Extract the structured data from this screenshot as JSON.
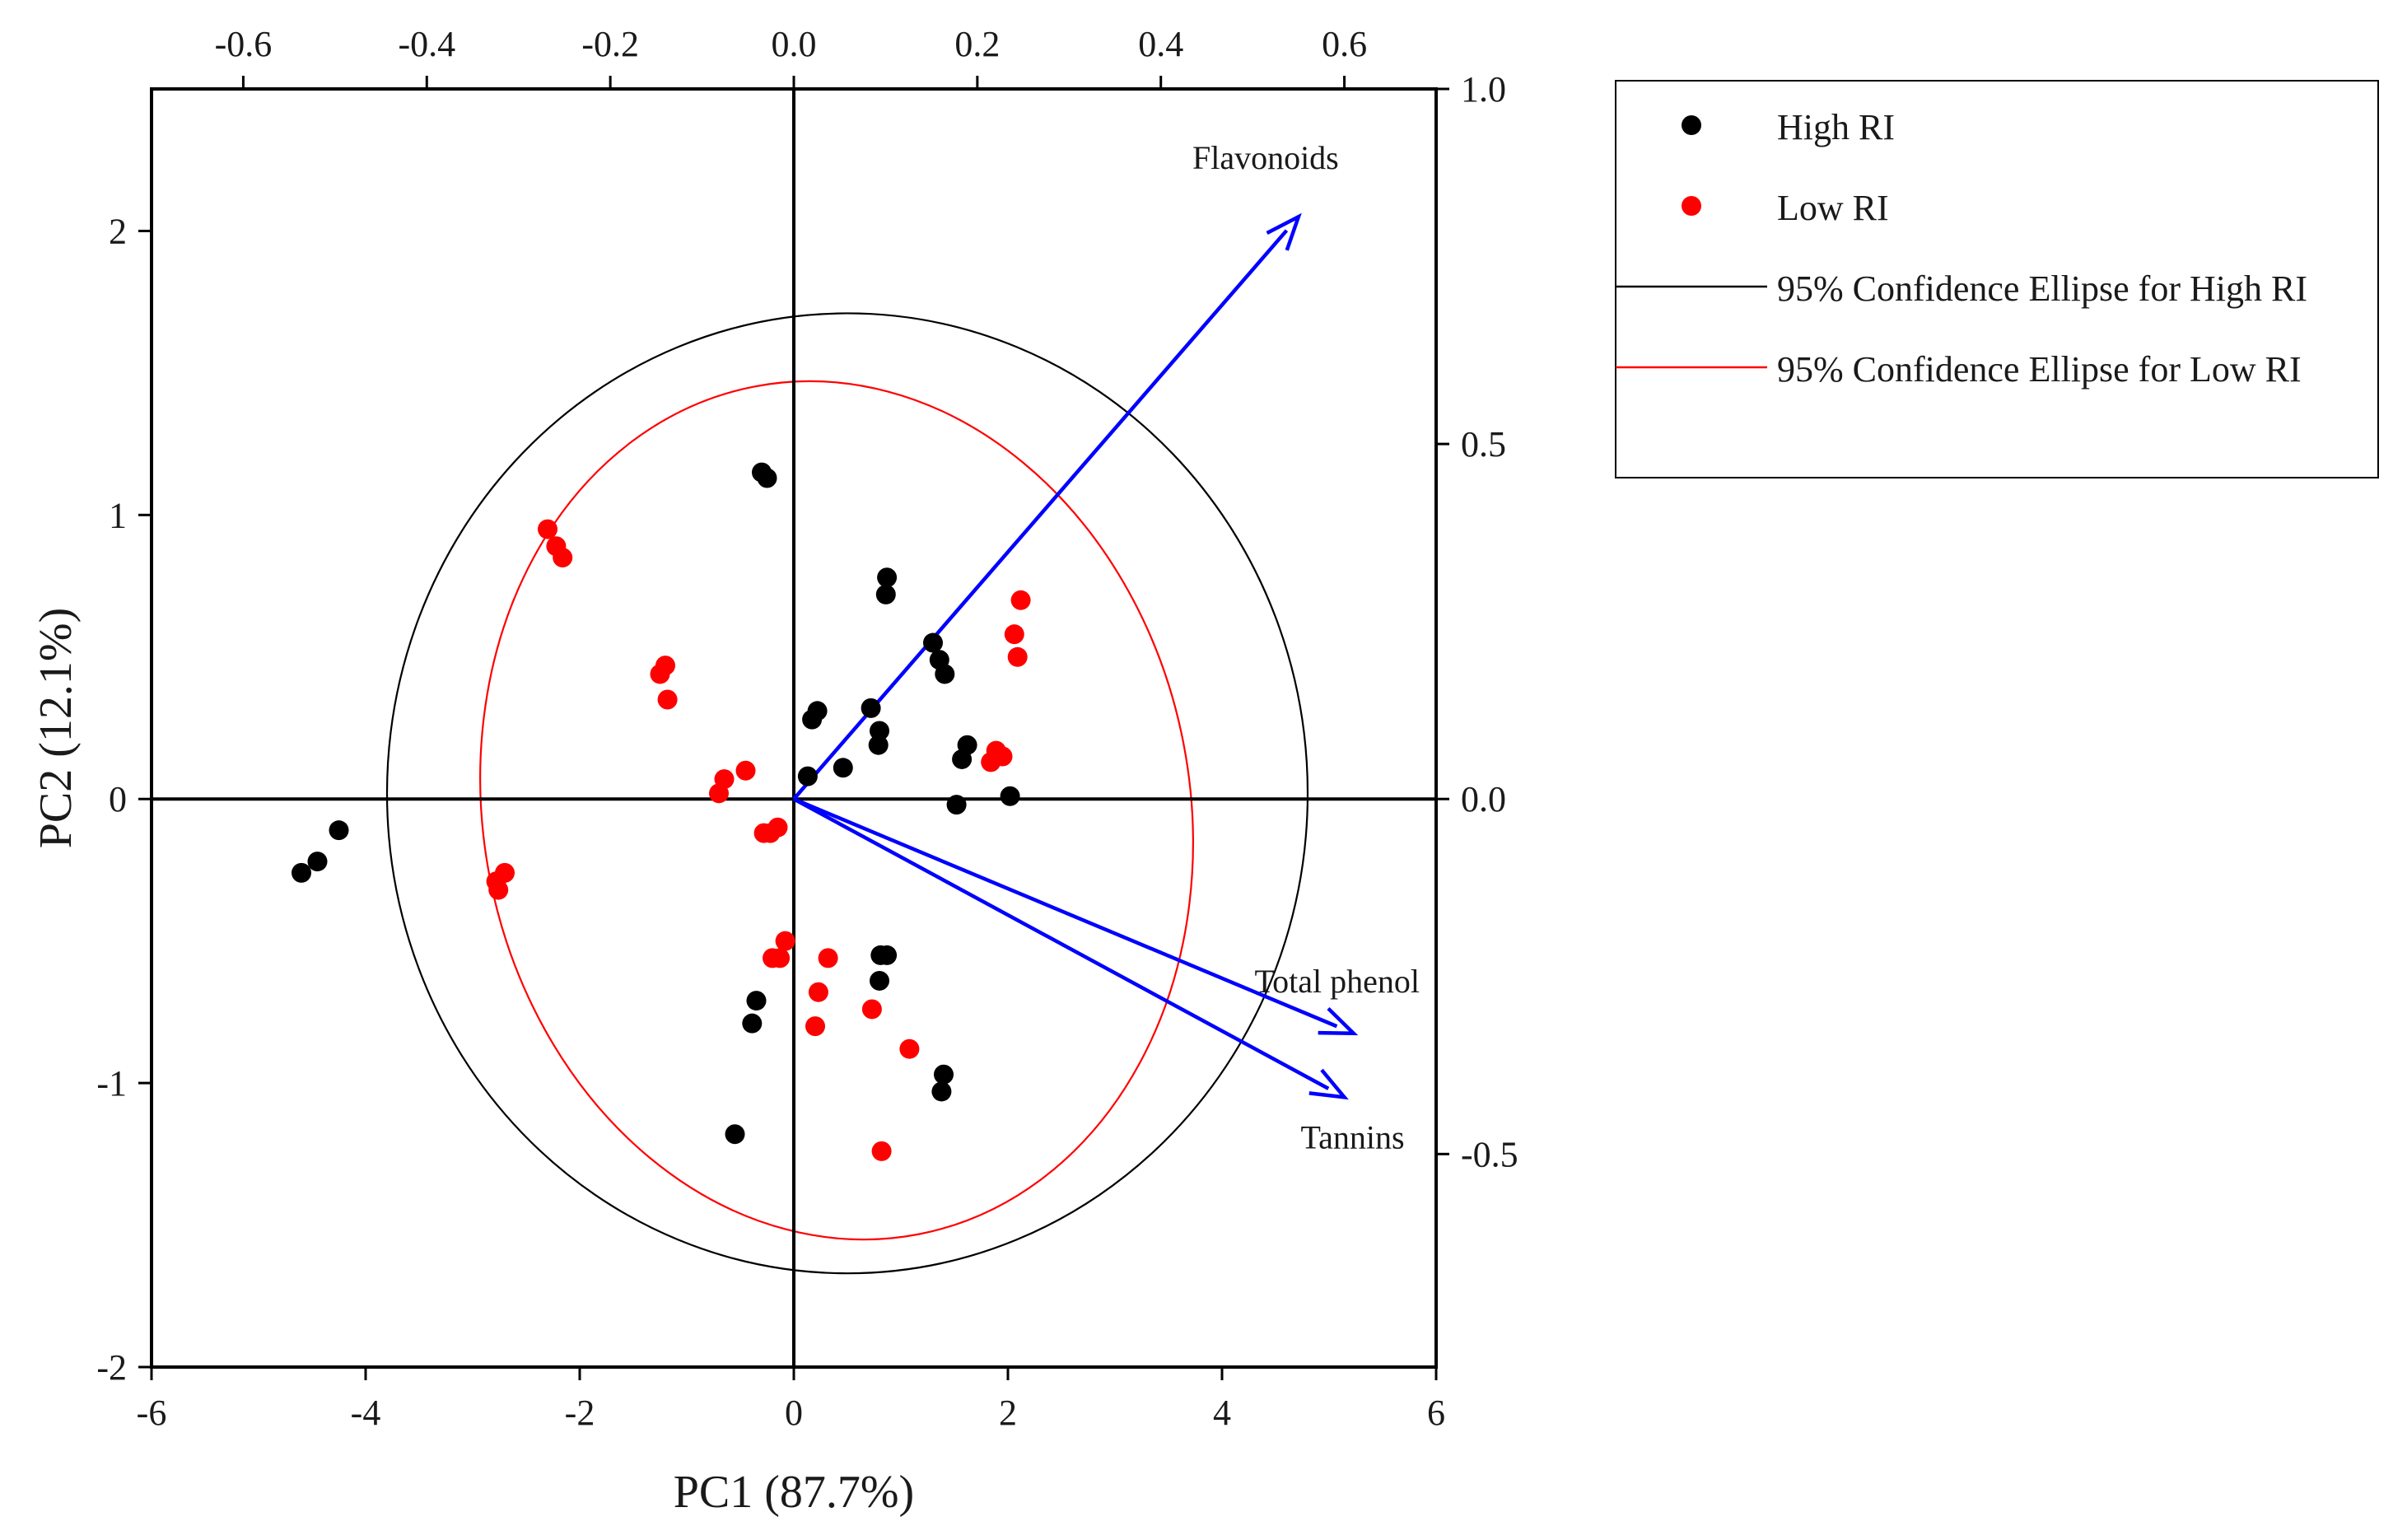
{
  "chart_data": {
    "type": "scatter",
    "subtype": "pca-biplot",
    "xlabel": "PC1 (87.7%)",
    "ylabel": "PC2 (12.1%)",
    "xlim": [
      -6,
      6
    ],
    "ylim": [
      -2,
      2.5
    ],
    "x_ticks": [
      "-6",
      "-4",
      "-2",
      "0",
      "2",
      "4",
      "6"
    ],
    "y_ticks": [
      "-2",
      "-1",
      "0",
      "1",
      "2"
    ],
    "top_axis": {
      "range": [
        -0.7,
        0.7
      ],
      "ticks": [
        "-0.6",
        "-0.4",
        "-0.2",
        "0.0",
        "0.2",
        "0.4",
        "0.6"
      ]
    },
    "right_axis": {
      "range": [
        -0.8,
        1.0
      ],
      "ticks": [
        "-0.5",
        "0.0",
        "0.5",
        "1.0"
      ]
    },
    "series": [
      {
        "name": "High RI",
        "color": "#000000",
        "points": [
          [
            -4.6,
            -0.26
          ],
          [
            -4.45,
            -0.22
          ],
          [
            -4.25,
            -0.11
          ],
          [
            -0.3,
            1.15
          ],
          [
            -0.25,
            1.13
          ],
          [
            0.87,
            0.78
          ],
          [
            0.86,
            0.72
          ],
          [
            1.3,
            0.55
          ],
          [
            1.36,
            0.49
          ],
          [
            1.41,
            0.44
          ],
          [
            0.72,
            0.32
          ],
          [
            0.8,
            0.24
          ],
          [
            0.79,
            0.19
          ],
          [
            0.22,
            0.31
          ],
          [
            0.17,
            0.28
          ],
          [
            0.46,
            0.11
          ],
          [
            0.13,
            0.08
          ],
          [
            1.62,
            0.19
          ],
          [
            1.57,
            0.14
          ],
          [
            1.52,
            -0.02
          ],
          [
            2.02,
            0.01
          ],
          [
            0.81,
            -0.55
          ],
          [
            0.87,
            -0.55
          ],
          [
            0.8,
            -0.64
          ],
          [
            -0.35,
            -0.71
          ],
          [
            -0.39,
            -0.79
          ],
          [
            1.4,
            -0.97
          ],
          [
            1.38,
            -1.03
          ],
          [
            -0.55,
            -1.18
          ]
        ]
      },
      {
        "name": "Low RI",
        "color": "#ff0000",
        "points": [
          [
            -2.3,
            0.95
          ],
          [
            -2.22,
            0.89
          ],
          [
            -2.16,
            0.85
          ],
          [
            -1.2,
            0.47
          ],
          [
            -1.25,
            0.44
          ],
          [
            -1.18,
            0.35
          ],
          [
            -0.45,
            0.1
          ],
          [
            -0.65,
            0.07
          ],
          [
            -0.7,
            0.02
          ],
          [
            -0.28,
            -0.12
          ],
          [
            -0.22,
            -0.12
          ],
          [
            -0.15,
            -0.1
          ],
          [
            -2.7,
            -0.26
          ],
          [
            -2.78,
            -0.29
          ],
          [
            -2.76,
            -0.32
          ],
          [
            2.12,
            0.7
          ],
          [
            2.06,
            0.58
          ],
          [
            2.09,
            0.5
          ],
          [
            1.89,
            0.17
          ],
          [
            1.84,
            0.13
          ],
          [
            1.95,
            0.15
          ],
          [
            -0.08,
            -0.5
          ],
          [
            -0.13,
            -0.56
          ],
          [
            -0.2,
            -0.56
          ],
          [
            0.32,
            -0.56
          ],
          [
            0.23,
            -0.68
          ],
          [
            0.73,
            -0.74
          ],
          [
            0.2,
            -0.8
          ],
          [
            1.08,
            -0.88
          ],
          [
            0.82,
            -1.24
          ]
        ]
      }
    ],
    "ellipses": [
      {
        "name": "95% Confidence Ellipse for High RI",
        "color": "#000000",
        "center": [
          0.5,
          0.02
        ],
        "rx": 4.3,
        "ry": 1.69,
        "angle_deg": 0
      },
      {
        "name": "95% Confidence Ellipse for Low RI",
        "color": "#ff0000",
        "center": [
          0.4,
          -0.04
        ],
        "rx": 3.3,
        "ry": 1.52,
        "angle_deg": 11
      }
    ],
    "loadings": [
      {
        "label": "Flavonoids",
        "x": 0.55,
        "y": 0.82
      },
      {
        "label": "Total phenol",
        "x": 0.61,
        "y": -0.33
      },
      {
        "label": "Tannins",
        "x": 0.6,
        "y": -0.42
      }
    ],
    "loading_color": "#0000ff",
    "legend": {
      "position": "top-right",
      "items": [
        {
          "label": "High RI",
          "kind": "marker",
          "color": "#000000"
        },
        {
          "label": "Low RI",
          "kind": "marker",
          "color": "#ff0000"
        },
        {
          "label": "95% Confidence Ellipse for High RI",
          "kind": "line",
          "color": "#000000"
        },
        {
          "label": "95% Confidence Ellipse for Low RI",
          "kind": "line",
          "color": "#ff0000"
        }
      ]
    }
  }
}
